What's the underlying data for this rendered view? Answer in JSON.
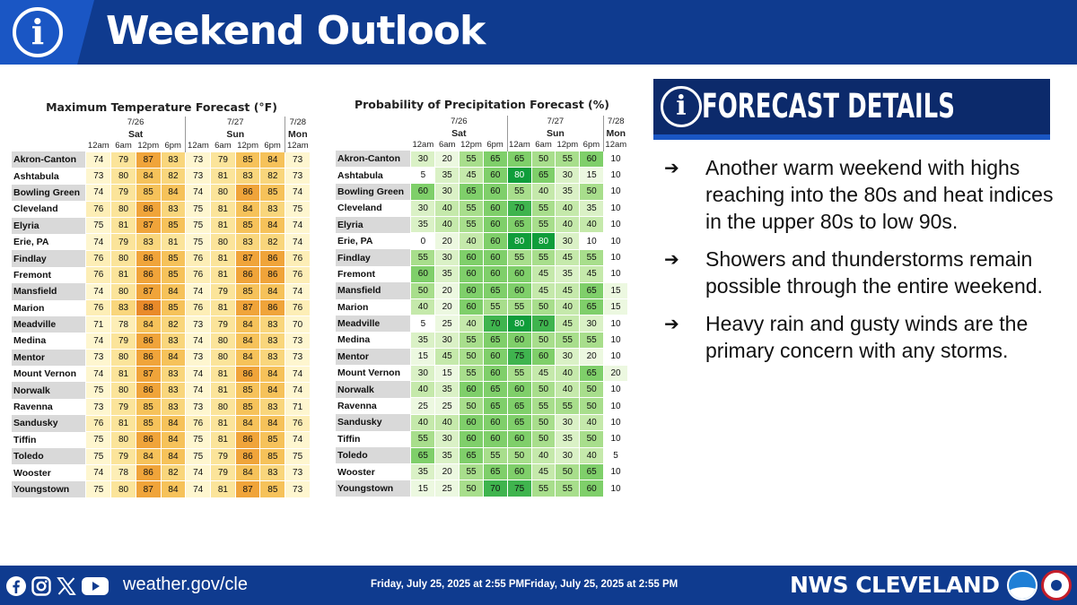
{
  "header": {
    "title": "Weekend Outlook"
  },
  "temp_table": {
    "title": "Maximum Temperature Forecast (°F)",
    "dates": [
      "7/26",
      "7/27",
      "7/28"
    ],
    "days": [
      "Sat",
      "Sun",
      "Mon"
    ],
    "times": [
      "12am",
      "6am",
      "12pm",
      "6pm",
      "12am",
      "6am",
      "12pm",
      "6pm",
      "12am"
    ],
    "rows": [
      {
        "city": "Akron-Canton",
        "values": [
          74,
          79,
          87,
          83,
          73,
          79,
          85,
          84,
          73
        ]
      },
      {
        "city": "Ashtabula",
        "values": [
          73,
          80,
          84,
          82,
          73,
          81,
          83,
          82,
          73
        ]
      },
      {
        "city": "Bowling Green",
        "values": [
          74,
          79,
          85,
          84,
          74,
          80,
          86,
          85,
          74
        ]
      },
      {
        "city": "Cleveland",
        "values": [
          76,
          80,
          86,
          83,
          75,
          81,
          84,
          83,
          75
        ]
      },
      {
        "city": "Elyria",
        "values": [
          75,
          81,
          87,
          85,
          75,
          81,
          85,
          84,
          74
        ]
      },
      {
        "city": "Erie, PA",
        "values": [
          74,
          79,
          83,
          81,
          75,
          80,
          83,
          82,
          74
        ]
      },
      {
        "city": "Findlay",
        "values": [
          76,
          80,
          86,
          85,
          76,
          81,
          87,
          86,
          76
        ]
      },
      {
        "city": "Fremont",
        "values": [
          76,
          81,
          86,
          85,
          76,
          81,
          86,
          86,
          76
        ]
      },
      {
        "city": "Mansfield",
        "values": [
          74,
          80,
          87,
          84,
          74,
          79,
          85,
          84,
          74
        ]
      },
      {
        "city": "Marion",
        "values": [
          76,
          83,
          88,
          85,
          76,
          81,
          87,
          86,
          76
        ]
      },
      {
        "city": "Meadville",
        "values": [
          71,
          78,
          84,
          82,
          73,
          79,
          84,
          83,
          70
        ]
      },
      {
        "city": "Medina",
        "values": [
          74,
          79,
          86,
          83,
          74,
          80,
          84,
          83,
          73
        ]
      },
      {
        "city": "Mentor",
        "values": [
          73,
          80,
          86,
          84,
          73,
          80,
          84,
          83,
          73
        ]
      },
      {
        "city": "Mount Vernon",
        "values": [
          74,
          81,
          87,
          83,
          74,
          81,
          86,
          84,
          74
        ]
      },
      {
        "city": "Norwalk",
        "values": [
          75,
          80,
          86,
          83,
          74,
          81,
          85,
          84,
          74
        ]
      },
      {
        "city": "Ravenna",
        "values": [
          73,
          79,
          85,
          83,
          73,
          80,
          85,
          83,
          71
        ]
      },
      {
        "city": "Sandusky",
        "values": [
          76,
          81,
          85,
          84,
          76,
          81,
          84,
          84,
          76
        ]
      },
      {
        "city": "Tiffin",
        "values": [
          75,
          80,
          86,
          84,
          75,
          81,
          86,
          85,
          74
        ]
      },
      {
        "city": "Toledo",
        "values": [
          75,
          79,
          84,
          84,
          75,
          79,
          86,
          85,
          75
        ]
      },
      {
        "city": "Wooster",
        "values": [
          74,
          78,
          86,
          82,
          74,
          79,
          84,
          83,
          73
        ]
      },
      {
        "city": "Youngstown",
        "values": [
          75,
          80,
          87,
          84,
          74,
          81,
          87,
          85,
          73
        ]
      }
    ]
  },
  "pop_table": {
    "title": "Probability of Precipitation Forecast (%)",
    "dates": [
      "7/26",
      "7/27",
      "7/28"
    ],
    "days": [
      "Sat",
      "Sun",
      "Mon"
    ],
    "times": [
      "12am",
      "6am",
      "12pm",
      "6pm",
      "12am",
      "6am",
      "12pm",
      "6pm",
      "12am"
    ],
    "rows": [
      {
        "city": "Akron-Canton",
        "values": [
          30,
          20,
          55,
          65,
          65,
          50,
          55,
          60,
          10
        ]
      },
      {
        "city": "Ashtabula",
        "values": [
          5,
          35,
          45,
          60,
          80,
          65,
          30,
          15,
          10
        ]
      },
      {
        "city": "Bowling Green",
        "values": [
          60,
          30,
          65,
          60,
          55,
          40,
          35,
          50,
          10
        ]
      },
      {
        "city": "Cleveland",
        "values": [
          30,
          40,
          55,
          60,
          70,
          55,
          40,
          35,
          10
        ]
      },
      {
        "city": "Elyria",
        "values": [
          35,
          40,
          55,
          60,
          65,
          55,
          40,
          40,
          10
        ]
      },
      {
        "city": "Erie, PA",
        "values": [
          0,
          20,
          40,
          60,
          80,
          80,
          30,
          10,
          10
        ]
      },
      {
        "city": "Findlay",
        "values": [
          55,
          30,
          60,
          60,
          55,
          55,
          45,
          55,
          10
        ]
      },
      {
        "city": "Fremont",
        "values": [
          60,
          35,
          60,
          60,
          60,
          45,
          35,
          45,
          10
        ]
      },
      {
        "city": "Mansfield",
        "values": [
          50,
          20,
          60,
          65,
          60,
          45,
          45,
          65,
          15
        ]
      },
      {
        "city": "Marion",
        "values": [
          40,
          20,
          60,
          55,
          55,
          50,
          40,
          65,
          15
        ]
      },
      {
        "city": "Meadville",
        "values": [
          5,
          25,
          40,
          70,
          80,
          70,
          45,
          30,
          10
        ]
      },
      {
        "city": "Medina",
        "values": [
          35,
          30,
          55,
          65,
          60,
          50,
          55,
          55,
          10
        ]
      },
      {
        "city": "Mentor",
        "values": [
          15,
          45,
          50,
          60,
          75,
          60,
          30,
          20,
          10
        ]
      },
      {
        "city": "Mount Vernon",
        "values": [
          30,
          15,
          55,
          60,
          55,
          45,
          40,
          65,
          20
        ]
      },
      {
        "city": "Norwalk",
        "values": [
          40,
          35,
          60,
          65,
          60,
          50,
          40,
          50,
          10
        ]
      },
      {
        "city": "Ravenna",
        "values": [
          25,
          25,
          50,
          65,
          65,
          55,
          55,
          50,
          10
        ]
      },
      {
        "city": "Sandusky",
        "values": [
          40,
          40,
          60,
          60,
          65,
          50,
          30,
          40,
          10
        ]
      },
      {
        "city": "Tiffin",
        "values": [
          55,
          30,
          60,
          60,
          60,
          50,
          35,
          50,
          10
        ]
      },
      {
        "city": "Toledo",
        "values": [
          65,
          35,
          65,
          55,
          50,
          40,
          30,
          40,
          5
        ]
      },
      {
        "city": "Wooster",
        "values": [
          35,
          20,
          55,
          65,
          60,
          45,
          50,
          65,
          10
        ]
      },
      {
        "city": "Youngstown",
        "values": [
          15,
          25,
          50,
          70,
          75,
          55,
          55,
          60,
          10
        ]
      }
    ]
  },
  "details": {
    "title": "FORECAST DETAILS",
    "bullets": [
      "Another warm weekend with highs reaching into the 80s and heat indices in the upper 80s to low 90s.",
      "Showers and thunderstorms remain possible through the entire weekend.",
      "Heavy rain and gusty winds are the primary concern with any storms."
    ]
  },
  "footer": {
    "website": "weather.gov/cle",
    "timestamp": "Friday, July 25, 2025 at 2:55 PMFriday, July 25, 2025 at 2:55 PM",
    "brand": "NWS CLEVELAND",
    "social_icons": [
      "facebook-icon",
      "instagram-icon",
      "x-icon",
      "youtube-icon"
    ]
  },
  "colors": {
    "header_blue": "#0f3b8f",
    "details_navy": "#0c2a6b",
    "accent_blue": "#1a56c4"
  }
}
